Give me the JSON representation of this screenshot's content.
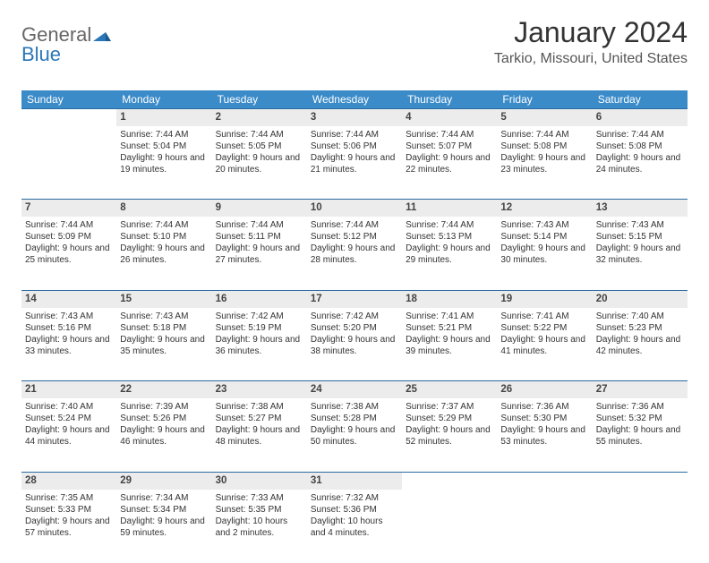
{
  "logo": {
    "part1": "General",
    "part2": "Blue"
  },
  "month_title": "January 2024",
  "location": "Tarkio, Missouri, United States",
  "header_bg": "#3b8bc9",
  "header_text": "#ffffff",
  "daynum_bg": "#ececec",
  "rule_color": "#2a6aa0",
  "day_names": [
    "Sunday",
    "Monday",
    "Tuesday",
    "Wednesday",
    "Thursday",
    "Friday",
    "Saturday"
  ],
  "weeks": [
    {
      "nums": [
        "",
        "1",
        "2",
        "3",
        "4",
        "5",
        "6"
      ],
      "cells": [
        null,
        {
          "sr": "Sunrise: 7:44 AM",
          "ss": "Sunset: 5:04 PM",
          "dl": "Daylight: 9 hours and 19 minutes."
        },
        {
          "sr": "Sunrise: 7:44 AM",
          "ss": "Sunset: 5:05 PM",
          "dl": "Daylight: 9 hours and 20 minutes."
        },
        {
          "sr": "Sunrise: 7:44 AM",
          "ss": "Sunset: 5:06 PM",
          "dl": "Daylight: 9 hours and 21 minutes."
        },
        {
          "sr": "Sunrise: 7:44 AM",
          "ss": "Sunset: 5:07 PM",
          "dl": "Daylight: 9 hours and 22 minutes."
        },
        {
          "sr": "Sunrise: 7:44 AM",
          "ss": "Sunset: 5:08 PM",
          "dl": "Daylight: 9 hours and 23 minutes."
        },
        {
          "sr": "Sunrise: 7:44 AM",
          "ss": "Sunset: 5:08 PM",
          "dl": "Daylight: 9 hours and 24 minutes."
        }
      ]
    },
    {
      "nums": [
        "7",
        "8",
        "9",
        "10",
        "11",
        "12",
        "13"
      ],
      "cells": [
        {
          "sr": "Sunrise: 7:44 AM",
          "ss": "Sunset: 5:09 PM",
          "dl": "Daylight: 9 hours and 25 minutes."
        },
        {
          "sr": "Sunrise: 7:44 AM",
          "ss": "Sunset: 5:10 PM",
          "dl": "Daylight: 9 hours and 26 minutes."
        },
        {
          "sr": "Sunrise: 7:44 AM",
          "ss": "Sunset: 5:11 PM",
          "dl": "Daylight: 9 hours and 27 minutes."
        },
        {
          "sr": "Sunrise: 7:44 AM",
          "ss": "Sunset: 5:12 PM",
          "dl": "Daylight: 9 hours and 28 minutes."
        },
        {
          "sr": "Sunrise: 7:44 AM",
          "ss": "Sunset: 5:13 PM",
          "dl": "Daylight: 9 hours and 29 minutes."
        },
        {
          "sr": "Sunrise: 7:43 AM",
          "ss": "Sunset: 5:14 PM",
          "dl": "Daylight: 9 hours and 30 minutes."
        },
        {
          "sr": "Sunrise: 7:43 AM",
          "ss": "Sunset: 5:15 PM",
          "dl": "Daylight: 9 hours and 32 minutes."
        }
      ]
    },
    {
      "nums": [
        "14",
        "15",
        "16",
        "17",
        "18",
        "19",
        "20"
      ],
      "cells": [
        {
          "sr": "Sunrise: 7:43 AM",
          "ss": "Sunset: 5:16 PM",
          "dl": "Daylight: 9 hours and 33 minutes."
        },
        {
          "sr": "Sunrise: 7:43 AM",
          "ss": "Sunset: 5:18 PM",
          "dl": "Daylight: 9 hours and 35 minutes."
        },
        {
          "sr": "Sunrise: 7:42 AM",
          "ss": "Sunset: 5:19 PM",
          "dl": "Daylight: 9 hours and 36 minutes."
        },
        {
          "sr": "Sunrise: 7:42 AM",
          "ss": "Sunset: 5:20 PM",
          "dl": "Daylight: 9 hours and 38 minutes."
        },
        {
          "sr": "Sunrise: 7:41 AM",
          "ss": "Sunset: 5:21 PM",
          "dl": "Daylight: 9 hours and 39 minutes."
        },
        {
          "sr": "Sunrise: 7:41 AM",
          "ss": "Sunset: 5:22 PM",
          "dl": "Daylight: 9 hours and 41 minutes."
        },
        {
          "sr": "Sunrise: 7:40 AM",
          "ss": "Sunset: 5:23 PM",
          "dl": "Daylight: 9 hours and 42 minutes."
        }
      ]
    },
    {
      "nums": [
        "21",
        "22",
        "23",
        "24",
        "25",
        "26",
        "27"
      ],
      "cells": [
        {
          "sr": "Sunrise: 7:40 AM",
          "ss": "Sunset: 5:24 PM",
          "dl": "Daylight: 9 hours and 44 minutes."
        },
        {
          "sr": "Sunrise: 7:39 AM",
          "ss": "Sunset: 5:26 PM",
          "dl": "Daylight: 9 hours and 46 minutes."
        },
        {
          "sr": "Sunrise: 7:38 AM",
          "ss": "Sunset: 5:27 PM",
          "dl": "Daylight: 9 hours and 48 minutes."
        },
        {
          "sr": "Sunrise: 7:38 AM",
          "ss": "Sunset: 5:28 PM",
          "dl": "Daylight: 9 hours and 50 minutes."
        },
        {
          "sr": "Sunrise: 7:37 AM",
          "ss": "Sunset: 5:29 PM",
          "dl": "Daylight: 9 hours and 52 minutes."
        },
        {
          "sr": "Sunrise: 7:36 AM",
          "ss": "Sunset: 5:30 PM",
          "dl": "Daylight: 9 hours and 53 minutes."
        },
        {
          "sr": "Sunrise: 7:36 AM",
          "ss": "Sunset: 5:32 PM",
          "dl": "Daylight: 9 hours and 55 minutes."
        }
      ]
    },
    {
      "nums": [
        "28",
        "29",
        "30",
        "31",
        "",
        "",
        ""
      ],
      "cells": [
        {
          "sr": "Sunrise: 7:35 AM",
          "ss": "Sunset: 5:33 PM",
          "dl": "Daylight: 9 hours and 57 minutes."
        },
        {
          "sr": "Sunrise: 7:34 AM",
          "ss": "Sunset: 5:34 PM",
          "dl": "Daylight: 9 hours and 59 minutes."
        },
        {
          "sr": "Sunrise: 7:33 AM",
          "ss": "Sunset: 5:35 PM",
          "dl": "Daylight: 10 hours and 2 minutes."
        },
        {
          "sr": "Sunrise: 7:32 AM",
          "ss": "Sunset: 5:36 PM",
          "dl": "Daylight: 10 hours and 4 minutes."
        },
        null,
        null,
        null
      ]
    }
  ]
}
